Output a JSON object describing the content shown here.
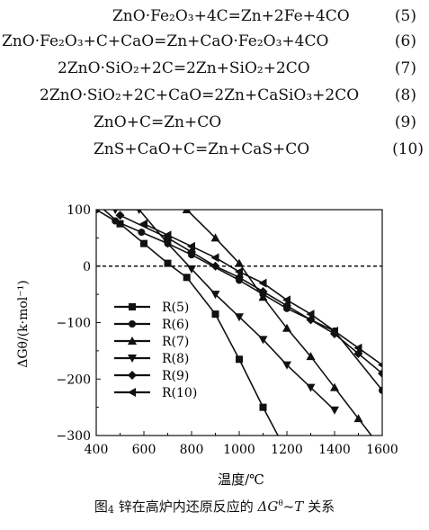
{
  "equations": [
    {
      "text": "ZnO·Fe₂O₃+4C=Zn+2Fe+4CO",
      "number": "(5)"
    },
    {
      "text": "ZnO·Fe₂O₃+C+CaO=Zn+CaO·Fe₂O₃+4CO",
      "number": "(6)"
    },
    {
      "text": "2ZnO·SiO₂+2C=2Zn+SiO₂+2CO",
      "number": "(7)"
    },
    {
      "text": "2ZnO·SiO₂+2C+CaO=2Zn+CaSiO₃+2CO",
      "number": "(8)"
    },
    {
      "text": "ZnO+C=Zn+CO",
      "number": "(9)"
    },
    {
      "text": "ZnS+CaO+C=Zn+CaS+CO",
      "number": "(10)"
    }
  ],
  "caption": {
    "prefix": "图",
    "number": "4",
    "text": "锌在高炉内还原反应的",
    "formula": "ΔG",
    "formula_sup": "θ",
    "formula_rest": "~T",
    "suffix": "关系"
  },
  "chart_data": {
    "type": "line",
    "xlabel": "温度/℃",
    "ylabel": "ΔGθ/(k·mol⁻¹)",
    "xlim": [
      400,
      1600
    ],
    "ylim": [
      -300,
      100
    ],
    "xticks": [
      400,
      600,
      800,
      1000,
      1200,
      1400,
      1600
    ],
    "yticks": [
      100,
      0,
      -100,
      -200,
      -300
    ],
    "zero_line": "dashed",
    "legend_position": "left-middle",
    "series": [
      {
        "name": "R(5)",
        "marker": "square",
        "x": [
          400,
          500,
          600,
          700,
          780,
          900,
          1000,
          1100,
          1200
        ],
        "y": [
          112,
          75,
          40,
          5,
          -20,
          -85,
          -165,
          -250,
          -330
        ]
      },
      {
        "name": "R(6)",
        "marker": "circle",
        "x": [
          400,
          480,
          590,
          700,
          800,
          1000,
          1100,
          1200,
          1400,
          1600
        ],
        "y": [
          100,
          80,
          60,
          40,
          20,
          -25,
          -50,
          -75,
          -115,
          -220
        ]
      },
      {
        "name": "R(7)",
        "marker": "triangle-up",
        "x": [
          780,
          900,
          1000,
          1100,
          1200,
          1300,
          1400,
          1500,
          1600
        ],
        "y": [
          100,
          50,
          5,
          -55,
          -110,
          -160,
          -215,
          -270,
          -325
        ]
      },
      {
        "name": "R(8)",
        "marker": "triangle-down",
        "x": [
          480,
          580,
          700,
          800,
          900,
          1000,
          1100,
          1200,
          1300,
          1400
        ],
        "y": [
          100,
          100,
          40,
          -5,
          -50,
          -90,
          -130,
          -175,
          -215,
          -255
        ]
      },
      {
        "name": "R(9)",
        "marker": "diamond",
        "x": [
          500,
          700,
          800,
          900,
          1000,
          1100,
          1200,
          1300,
          1400,
          1500,
          1600
        ],
        "y": [
          90,
          50,
          25,
          0,
          -20,
          -45,
          -70,
          -95,
          -120,
          -155,
          -190
        ]
      },
      {
        "name": "R(10)",
        "marker": "triangle-left",
        "x": [
          600,
          700,
          800,
          900,
          1000,
          1100,
          1200,
          1300,
          1400,
          1500,
          1600
        ],
        "y": [
          75,
          55,
          35,
          15,
          -10,
          -30,
          -60,
          -85,
          -115,
          -145,
          -175
        ]
      }
    ]
  }
}
